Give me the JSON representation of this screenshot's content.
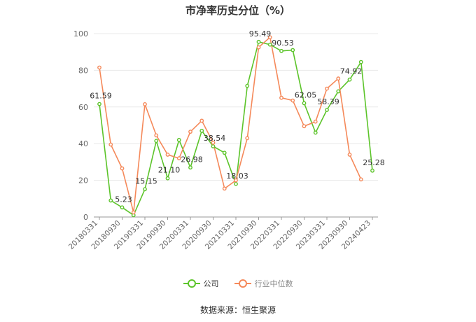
{
  "title": "市净率历史分位（%）",
  "source": "数据来源：恒生聚源",
  "chart_data": {
    "type": "line",
    "title": "市净率历史分位（%）",
    "xlabel": "",
    "ylabel": "",
    "ylim": [
      0,
      100
    ],
    "yticks": [
      0,
      20,
      40,
      60,
      80,
      100
    ],
    "grid": true,
    "legend_position": "bottom",
    "x_tick_labels": [
      "20180331",
      "20180930",
      "20190331",
      "20190930",
      "20200331",
      "20200930",
      "20210331",
      "20210930",
      "20220331",
      "20220930",
      "20230331",
      "20230930",
      "20240423"
    ],
    "series": [
      {
        "name": "公司",
        "color": "#5cc42a",
        "values": [
          61.59,
          9,
          5.23,
          1,
          15.15,
          41.5,
          21.1,
          42,
          26.98,
          47,
          38.54,
          35,
          18.03,
          71.5,
          95.49,
          94,
          90.53,
          91,
          62.05,
          46,
          58.39,
          68.5,
          74.92,
          84.5,
          25.28
        ],
        "labels": [
          "61.59",
          null,
          "5.23",
          null,
          "15.15",
          null,
          "21.10",
          null,
          "26.98",
          null,
          "38.54",
          null,
          "18.03",
          null,
          "95.49",
          null,
          "90.53",
          null,
          "62.05",
          null,
          "58.39",
          null,
          "74.92",
          null,
          "25.28"
        ]
      },
      {
        "name": "行业中位数",
        "color": "#f5895a",
        "values": [
          81.5,
          39.5,
          26.5,
          2.5,
          61.5,
          44.5,
          34,
          32,
          46.5,
          52.5,
          40.5,
          15.5,
          20,
          43,
          92.5,
          98,
          65,
          63.5,
          49.5,
          52,
          70,
          75.5,
          34,
          20.5,
          null
        ]
      }
    ]
  }
}
